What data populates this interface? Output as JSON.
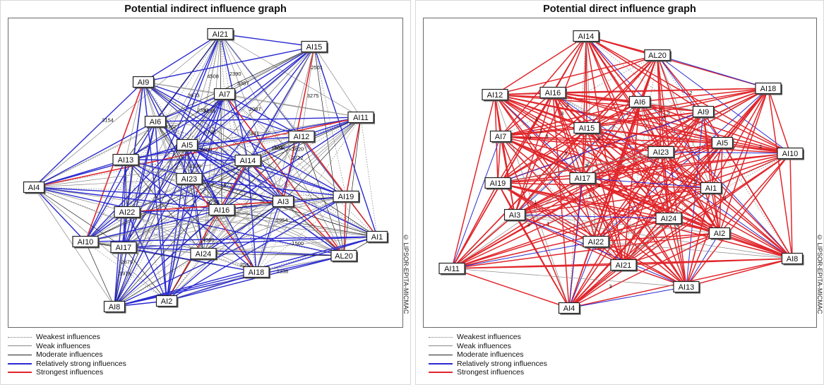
{
  "left": {
    "title": "Potential indirect influence graph",
    "copyright": "© LIPSOR-EPITA-MICMAC",
    "nodes": [
      "AI21",
      "AI15",
      "AI9",
      "AI7",
      "AI11",
      "AI6",
      "AI12",
      "AI5",
      "AI13",
      "AI14",
      "AI4",
      "AI23",
      "AI19",
      "AI3",
      "AI22",
      "AI16",
      "AI1",
      "AI10",
      "AI17",
      "AI24",
      "AL20",
      "AI18",
      "AI8",
      "AI2"
    ],
    "edge_labels": [
      "2390",
      "2841",
      "4508",
      "1916",
      "3198",
      "3154",
      "3262",
      "3620",
      "3387",
      "3136",
      "2722",
      "1854",
      "2547",
      "2879",
      "1500",
      "2338",
      "2087",
      "3762",
      "3736",
      "4960",
      "2501",
      "5600",
      "2754",
      "2392",
      "3673",
      "3275",
      "1573",
      "2954"
    ]
  },
  "right": {
    "title": "Potential direct influence graph",
    "copyright": "© LIPSOR-EPITA-MICMAC",
    "nodes": [
      "AI14",
      "AL20",
      "AI18",
      "AI12",
      "AI16",
      "AI6",
      "AI9",
      "AI7",
      "AI15",
      "AI5",
      "AI10",
      "AI23",
      "AI19",
      "AI17",
      "AI1",
      "AI3",
      "AI24",
      "AI2",
      "AI22",
      "AI8",
      "AI11",
      "AI21",
      "AI13",
      "AI4"
    ],
    "edge_labels": [
      "3",
      "3",
      "3",
      "2",
      "3",
      "3",
      "3",
      "3",
      "2",
      "1",
      "2",
      "1",
      "2",
      "1",
      "1",
      "3",
      "3",
      "2",
      "3",
      "3",
      "2",
      "1",
      "3",
      "1",
      "1",
      "2",
      "3"
    ]
  },
  "legend": [
    {
      "key": "weakest",
      "label": "Weakest influences"
    },
    {
      "key": "weak",
      "label": "Weak influences"
    },
    {
      "key": "moderate",
      "label": "Moderate influences"
    },
    {
      "key": "relatively_strong",
      "label": "Relatively strong influences"
    },
    {
      "key": "strongest",
      "label": "Strongest influences"
    }
  ],
  "colors": {
    "weakest": "#777777",
    "weak": "#8a8a8a",
    "moderate": "#222222",
    "relatively_strong": "#2b2bd0",
    "strongest": "#e0262b"
  }
}
